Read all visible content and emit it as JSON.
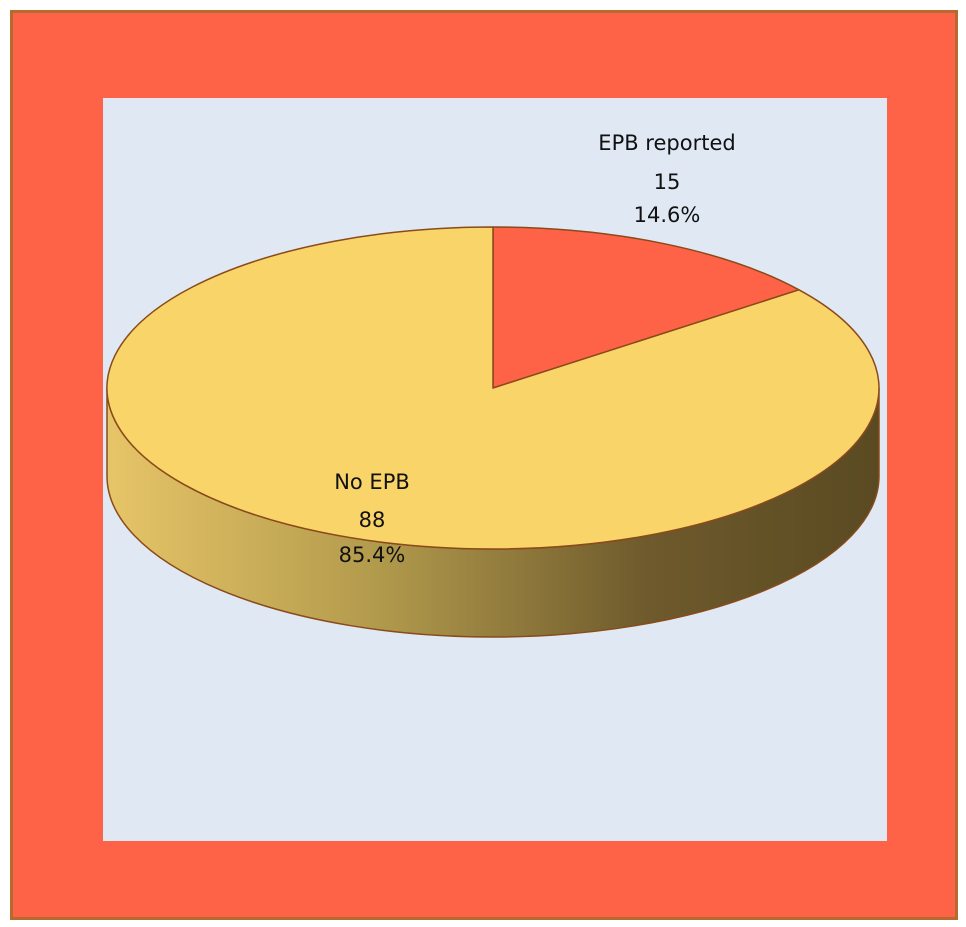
{
  "chart_data": {
    "type": "pie",
    "variant": "3d",
    "slices": [
      {
        "label": "EPB reported",
        "value": 15,
        "percent": "14.6%",
        "color": "#ff6347"
      },
      {
        "label": "No EPB",
        "value": 88,
        "percent": "85.4%",
        "color": "#f9d469"
      }
    ],
    "background": "#dfe8f3",
    "frame_color": "#ff6347",
    "legend": "none"
  }
}
